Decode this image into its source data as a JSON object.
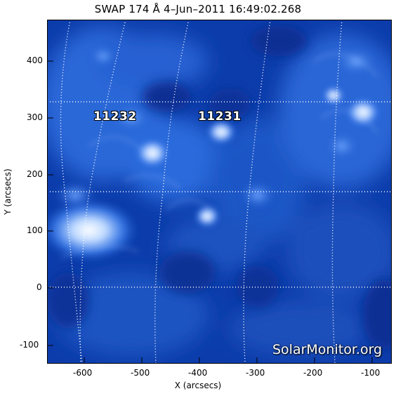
{
  "title": "SWAP 174 Å   4–Jun–2011 16:49:02.268",
  "x_axis": {
    "label": "X (arcsecs)",
    "ticks": [
      "-600",
      "-500",
      "-400",
      "-300",
      "-200",
      "-100"
    ]
  },
  "y_axis": {
    "label": "Y (arcsecs)",
    "ticks": [
      "400",
      "300",
      "200",
      "100",
      "0",
      "-100"
    ]
  },
  "active_regions": [
    {
      "label": "11232"
    },
    {
      "label": "11231"
    }
  ],
  "watermark": "SolarMonitor.org",
  "colors": {
    "background": "#0a3aa6",
    "bright": "#ffffff",
    "grid": "#ffffff"
  }
}
